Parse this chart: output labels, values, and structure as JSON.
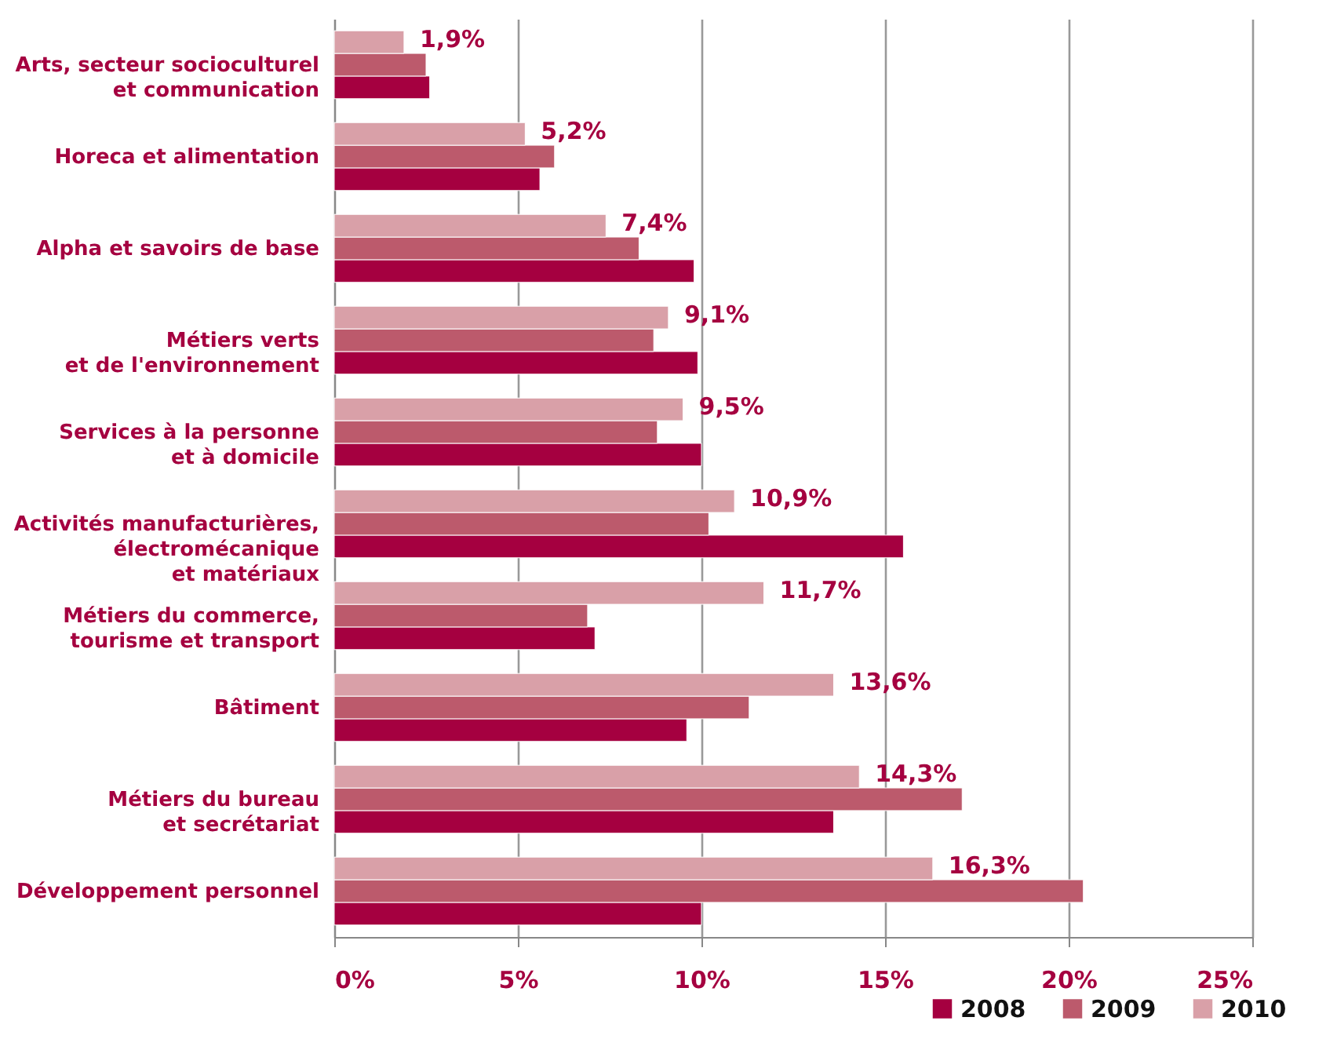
{
  "chart_data": {
    "type": "bar",
    "orientation": "horizontal",
    "categories": [
      "Arts, secteur socioculturel\net communication",
      "Horeca et alimentation",
      "Alpha et savoirs de base",
      "Métiers verts\net de l'environnement",
      "Services à la personne\net à domicile",
      "Activités manufacturières,\nélectromécanique\net matériaux",
      "Métiers du commerce,\ntourisme et transport",
      "Bâtiment",
      "Métiers du bureau\net secrétariat",
      "Développement personnel"
    ],
    "series": [
      {
        "name": "2008",
        "color": "#a50040",
        "values": [
          2.6,
          5.6,
          9.8,
          9.9,
          10.0,
          15.5,
          7.1,
          9.6,
          13.6,
          10.0
        ]
      },
      {
        "name": "2009",
        "color": "#bc5a6c",
        "values": [
          2.5,
          6.0,
          8.3,
          8.7,
          8.8,
          10.2,
          6.9,
          11.3,
          17.1,
          20.4
        ]
      },
      {
        "name": "2010",
        "color": "#d9a0a8",
        "values": [
          1.9,
          5.2,
          7.4,
          9.1,
          9.5,
          10.9,
          11.7,
          13.6,
          14.3,
          16.3
        ],
        "value_labels": [
          "1,9%",
          "5,2%",
          "7,4%",
          "9,1%",
          "9,5%",
          "10,9%",
          "11,7%",
          "13,6%",
          "14,3%",
          "16,3%"
        ]
      }
    ],
    "xlim": [
      0,
      25
    ],
    "xticks": [
      {
        "value": 0,
        "label": "0%"
      },
      {
        "value": 5,
        "label": "5%"
      },
      {
        "value": 10,
        "label": "10%"
      },
      {
        "value": 15,
        "label": "15%"
      },
      {
        "value": 20,
        "label": "20%"
      },
      {
        "value": 25,
        "label": "25%"
      }
    ],
    "grid": "x",
    "legend": "bottom right"
  }
}
